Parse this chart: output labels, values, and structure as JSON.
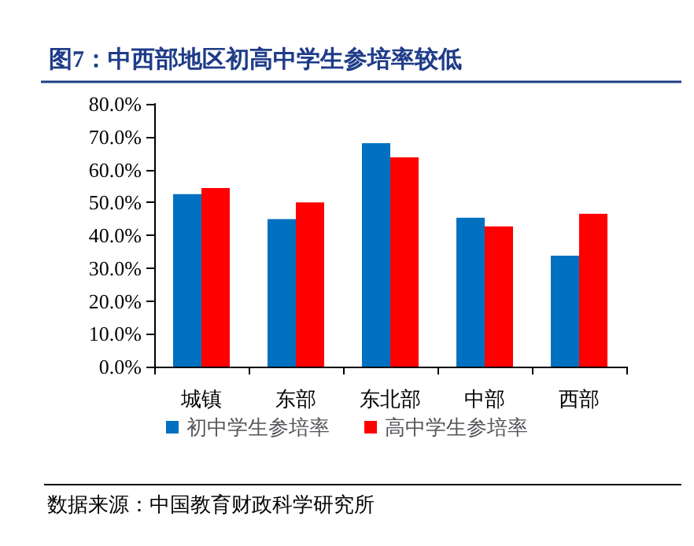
{
  "chart_data": {
    "type": "bar",
    "title": "图7：中西部地区初高中学生参培率较低",
    "categories": [
      "城镇",
      "东部",
      "东北部",
      "中部",
      "西部"
    ],
    "series": [
      {
        "name": "初中学生参培率",
        "color": "#0070c0",
        "values": [
          52.5,
          44.9,
          68.0,
          45.3,
          33.8
        ]
      },
      {
        "name": "高中学生参培率",
        "color": "#ff0000",
        "values": [
          54.4,
          50.0,
          63.7,
          42.7,
          46.5
        ]
      }
    ],
    "ylim": [
      0,
      80
    ],
    "yticks": [
      {
        "value": 0,
        "label": "0.0%"
      },
      {
        "value": 10,
        "label": "10.0%"
      },
      {
        "value": 20,
        "label": "20.0%"
      },
      {
        "value": 30,
        "label": "30.0%"
      },
      {
        "value": 40,
        "label": "40.0%"
      },
      {
        "value": 50,
        "label": "50.0%"
      },
      {
        "value": 60,
        "label": "60.0%"
      },
      {
        "value": 70,
        "label": "70.0%"
      },
      {
        "value": 80,
        "label": "80.0%"
      }
    ],
    "grid": false,
    "legend": "bottom",
    "annotations": [
      "数据来源：中国教育财政科学研究所"
    ]
  }
}
